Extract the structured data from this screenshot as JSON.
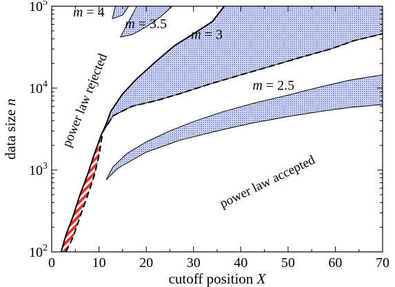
{
  "chart_data": {
    "type": "area",
    "xlabel_main": "cutoff position ",
    "xlabel_var": "X",
    "ylabel_main": "data size ",
    "ylabel_var": "n",
    "xlim": [
      0,
      70
    ],
    "ylim": [
      100,
      100000
    ],
    "y_scale": "log",
    "xticks": [
      0,
      10,
      20,
      30,
      40,
      50,
      60,
      70
    ],
    "yticks": [
      {
        "value": 100,
        "base": "10",
        "exp": "2"
      },
      {
        "value": 1000,
        "base": "10",
        "exp": "3"
      },
      {
        "value": 10000,
        "base": "10",
        "exp": "4"
      },
      {
        "value": 100000,
        "base": "10",
        "exp": "5"
      }
    ],
    "colors": {
      "blue_band": "#8ea0e8",
      "red_band": "#e8302a",
      "border": "#000000"
    },
    "regions": [
      {
        "name": "m = 2.5",
        "fill": "blue_band",
        "upper": [
          [
            11.5,
            760
          ],
          [
            13,
            1100
          ],
          [
            16,
            1600
          ],
          [
            20,
            2200
          ],
          [
            25,
            3000
          ],
          [
            30,
            3900
          ],
          [
            36,
            5100
          ],
          [
            43,
            6600
          ],
          [
            50,
            8200
          ],
          [
            57,
            10400
          ],
          [
            63,
            12500
          ],
          [
            70,
            14500
          ]
        ],
        "lower": [
          [
            11.5,
            760
          ],
          [
            14,
            1050
          ],
          [
            20,
            1650
          ],
          [
            27,
            2300
          ],
          [
            35,
            3000
          ],
          [
            42,
            3700
          ],
          [
            50,
            4500
          ],
          [
            57,
            5200
          ],
          [
            63,
            5800
          ],
          [
            70,
            6300
          ]
        ]
      },
      {
        "name": "m = 3",
        "fill": "blue_band",
        "upper": [
          [
            10.8,
            2900
          ],
          [
            12.5,
            5200
          ],
          [
            15,
            8500
          ],
          [
            18,
            13000
          ],
          [
            22,
            21000
          ],
          [
            26,
            33000
          ],
          [
            30,
            46000
          ],
          [
            34,
            65000
          ],
          [
            36.5,
            100000
          ]
        ],
        "lower": [
          [
            10.8,
            2900
          ],
          [
            13,
            4600
          ],
          [
            17,
            6000
          ],
          [
            22,
            7000
          ],
          [
            27,
            8500
          ],
          [
            33,
            11000
          ],
          [
            40,
            14500
          ],
          [
            47,
            19000
          ],
          [
            53,
            24000
          ],
          [
            59,
            30000
          ],
          [
            64,
            38000
          ],
          [
            70,
            46000
          ]
        ],
        "top": 100000
      },
      {
        "name": "m = 3.5",
        "fill": "blue_band",
        "upper": [
          [
            14.5,
            42000
          ],
          [
            16,
            60000
          ],
          [
            18,
            100000
          ]
        ],
        "lower": [
          [
            14.5,
            42000
          ],
          [
            17,
            45000
          ],
          [
            20,
            56000
          ],
          [
            23,
            74000
          ],
          [
            25.5,
            100000
          ]
        ],
        "top": 100000
      },
      {
        "name": "m = 4",
        "fill": "blue_band",
        "upper": [
          [
            12.8,
            70000
          ],
          [
            13.5,
            100000
          ]
        ],
        "lower": [
          [
            12.8,
            70000
          ],
          [
            15,
            78000
          ],
          [
            16.3,
            100000
          ]
        ],
        "top": 100000
      },
      {
        "name": "red",
        "fill": "red_band",
        "upper": [
          [
            2,
            100
          ],
          [
            3,
            160
          ],
          [
            4.5,
            270
          ],
          [
            6,
            500
          ],
          [
            7.5,
            850
          ],
          [
            9,
            1550
          ],
          [
            10.5,
            2700
          ]
        ],
        "lower": [
          [
            3,
            100
          ],
          [
            4.5,
            150
          ],
          [
            6,
            270
          ],
          [
            7.5,
            470
          ],
          [
            9,
            850
          ],
          [
            10,
            1500
          ],
          [
            10.5,
            2700
          ]
        ]
      }
    ],
    "lines": [
      {
        "name": "m = 3 upper edge",
        "style": "solid",
        "width": 2,
        "points": [
          [
            2,
            100
          ],
          [
            3,
            160
          ],
          [
            4.5,
            270
          ],
          [
            6,
            500
          ],
          [
            7.5,
            850
          ],
          [
            9,
            1550
          ],
          [
            10.5,
            2700
          ],
          [
            11.5,
            3600
          ],
          [
            12.5,
            5200
          ],
          [
            15,
            8500
          ],
          [
            18,
            13000
          ],
          [
            22,
            21000
          ],
          [
            26,
            33000
          ],
          [
            30,
            46000
          ],
          [
            34,
            65000
          ],
          [
            36.5,
            100000
          ]
        ]
      },
      {
        "name": "m = 3 lower edge",
        "style": "dashed",
        "width": 2,
        "points": [
          [
            3,
            100
          ],
          [
            4.5,
            150
          ],
          [
            6,
            270
          ],
          [
            7.5,
            470
          ],
          [
            9,
            850
          ],
          [
            10,
            1500
          ],
          [
            10.8,
            2900
          ],
          [
            13,
            4600
          ],
          [
            17,
            6000
          ],
          [
            22,
            7000
          ],
          [
            27,
            8500
          ],
          [
            33,
            11000
          ],
          [
            40,
            14500
          ],
          [
            47,
            19000
          ],
          [
            53,
            24000
          ],
          [
            59,
            30000
          ],
          [
            64,
            38000
          ],
          [
            70,
            46000
          ]
        ]
      }
    ],
    "region_labels": [
      {
        "name": "m = 4",
        "text": "= 4",
        "var": "m",
        "x": 4.5,
        "y": 75000
      },
      {
        "name": "m = 3.5",
        "text": "= 3.5",
        "var": "m",
        "x": 15.5,
        "y": 54000
      },
      {
        "name": "m = 3",
        "text": "= 3",
        "var": "m",
        "x": 29.5,
        "y": 40000
      },
      {
        "name": "m = 2.5",
        "text": "= 2.5",
        "var": "m",
        "x": 42.5,
        "y": 9500
      }
    ],
    "annotations": [
      {
        "name": "power-law-rejected",
        "text": "power law rejected",
        "x": 7.8,
        "y": 6800,
        "angle": -68
      },
      {
        "name": "power-law-accepted",
        "text": "power law accepted",
        "x": 46,
        "y": 650,
        "angle": -26
      }
    ]
  }
}
